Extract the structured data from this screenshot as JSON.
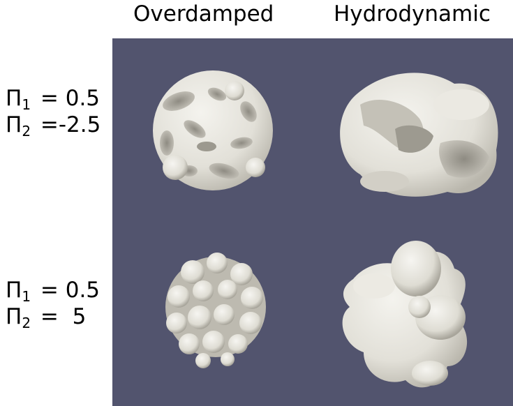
{
  "figure": {
    "column_titles": [
      "Overdamped",
      "Hydrodynamic"
    ],
    "rows": [
      {
        "pi1_symbol": "Π",
        "pi1_sub": "1",
        "pi1_text": " = 0.5",
        "pi2_symbol": "Π",
        "pi2_sub": "2",
        "pi2_text": " =-2.5"
      },
      {
        "pi1_symbol": "Π",
        "pi1_sub": "1",
        "pi1_text": " = 0.5",
        "pi2_symbol": "Π",
        "pi2_sub": "2",
        "pi2_text": " =  5"
      }
    ],
    "colors": {
      "panel_background": "#52546e",
      "surface": "#e8e6df",
      "surface_shadow": "#a9a69c"
    }
  }
}
